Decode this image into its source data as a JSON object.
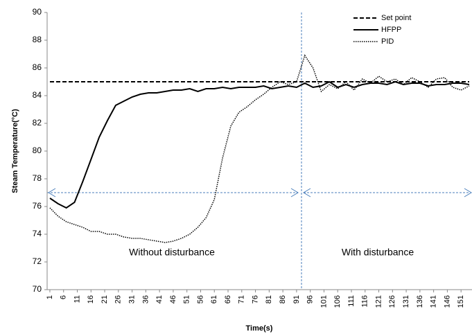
{
  "chart_data": {
    "type": "line",
    "y_label": "Steam Temperature(°C)",
    "x_label": "Time(s)",
    "annotations": [
      "Without disturbance",
      "With disturbance"
    ],
    "x": [
      1,
      4,
      7,
      10,
      13,
      16,
      19,
      22,
      25,
      28,
      31,
      34,
      37,
      40,
      43,
      46,
      49,
      52,
      55,
      58,
      61,
      64,
      67,
      70,
      73,
      76,
      79,
      82,
      85,
      88,
      91,
      94,
      97,
      100,
      103,
      106,
      109,
      112,
      115,
      118,
      121,
      124,
      127,
      130,
      133,
      136,
      139,
      142,
      145,
      148,
      151,
      154
    ],
    "xlim": [
      0,
      155
    ],
    "xticks": [
      1,
      6,
      11,
      16,
      21,
      26,
      31,
      36,
      41,
      46,
      51,
      56,
      61,
      66,
      71,
      76,
      81,
      86,
      91,
      96,
      101,
      106,
      111,
      116,
      121,
      126,
      131,
      136,
      141,
      146,
      151
    ],
    "ylim": [
      70,
      90
    ],
    "yticks": [
      70,
      72,
      74,
      76,
      78,
      80,
      82,
      84,
      86,
      88,
      90
    ],
    "legend": "top-right",
    "series": [
      {
        "name": "Set point",
        "color": "#000000",
        "line_style": "dashed",
        "values": [
          85,
          85,
          85,
          85,
          85,
          85,
          85,
          85,
          85,
          85,
          85,
          85,
          85,
          85,
          85,
          85,
          85,
          85,
          85,
          85,
          85,
          85,
          85,
          85,
          85,
          85,
          85,
          85,
          85,
          85,
          85,
          85,
          85,
          85,
          85,
          85,
          85,
          85,
          85,
          85,
          85,
          85,
          85,
          85,
          85,
          85,
          85,
          85,
          85,
          85,
          85,
          85
        ]
      },
      {
        "name": "HFPP",
        "color": "#000000",
        "line_style": "solid",
        "values": [
          76.6,
          76.2,
          75.9,
          76.3,
          77.8,
          79.4,
          81.0,
          82.2,
          83.3,
          83.6,
          83.9,
          84.1,
          84.2,
          84.2,
          84.3,
          84.4,
          84.4,
          84.5,
          84.3,
          84.5,
          84.5,
          84.6,
          84.5,
          84.6,
          84.6,
          84.6,
          84.7,
          84.5,
          84.6,
          84.7,
          84.6,
          84.9,
          84.6,
          84.7,
          85.0,
          84.6,
          84.8,
          84.6,
          84.8,
          84.9,
          84.9,
          84.8,
          85.0,
          84.8,
          84.9,
          84.9,
          84.7,
          84.8,
          84.8,
          84.9,
          84.9,
          84.8
        ]
      },
      {
        "name": "PID",
        "color": "#000000",
        "line_style": "dotted",
        "values": [
          75.9,
          75.3,
          74.9,
          74.7,
          74.5,
          74.2,
          74.2,
          74.0,
          74.0,
          73.8,
          73.7,
          73.7,
          73.6,
          73.5,
          73.4,
          73.5,
          73.7,
          74.0,
          74.5,
          75.2,
          76.5,
          79.5,
          81.8,
          82.8,
          83.2,
          83.7,
          84.1,
          84.6,
          85.0,
          84.8,
          85.0,
          86.9,
          86.0,
          84.3,
          84.8,
          84.5,
          85.0,
          84.4,
          85.2,
          84.9,
          85.4,
          85.0,
          85.2,
          84.8,
          85.3,
          85.0,
          84.6,
          85.2,
          85.3,
          84.6,
          84.4,
          84.7
        ]
      }
    ]
  }
}
